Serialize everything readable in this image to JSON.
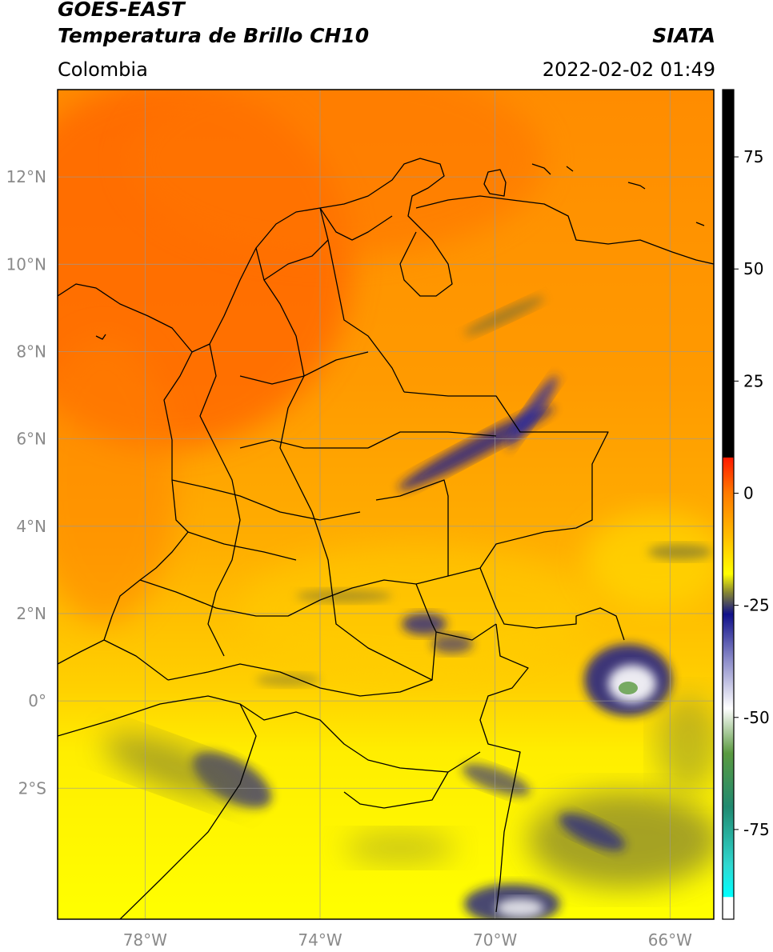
{
  "header": {
    "title_line1": "GOES-EAST",
    "title_line2": "Temperatura de Brillo CH10",
    "source": "SIATA",
    "region": "Colombia",
    "datetime": "2022-02-02 01:49"
  },
  "map": {
    "lon_range": [
      -80,
      -65
    ],
    "lat_range": [
      -5.0,
      14.0
    ],
    "lat_ticks": [
      {
        "value": 12,
        "label": "12°N"
      },
      {
        "value": 10,
        "label": "10°N"
      },
      {
        "value": 8,
        "label": "8°N"
      },
      {
        "value": 6,
        "label": "6°N"
      },
      {
        "value": 4,
        "label": "4°N"
      },
      {
        "value": 2,
        "label": "2°N"
      },
      {
        "value": 0,
        "label": "0°"
      },
      {
        "value": -2,
        "label": "2°S"
      }
    ],
    "lon_ticks": [
      {
        "value": -78,
        "label": "78°W"
      },
      {
        "value": -74,
        "label": "74°W"
      },
      {
        "value": -70,
        "label": "70°W"
      },
      {
        "value": -66,
        "label": "66°W"
      }
    ],
    "grid": true,
    "colors": {
      "warm": "#ff6a00",
      "mid": "#ffa500",
      "cool": "#ffff00",
      "cold": "#1a1a8c",
      "gridline": "#999999"
    }
  },
  "colorbar": {
    "range": [
      -95,
      90
    ],
    "ticks": [
      {
        "value": 75,
        "label": "75"
      },
      {
        "value": 50,
        "label": "50"
      },
      {
        "value": 25,
        "label": "25"
      },
      {
        "value": 0,
        "label": "0"
      },
      {
        "value": -25,
        "label": "-25"
      },
      {
        "value": -50,
        "label": "-50"
      },
      {
        "value": -75,
        "label": "-75"
      }
    ],
    "stops": [
      {
        "value": 90,
        "color": "#000000"
      },
      {
        "value": 8,
        "color": "#000000"
      },
      {
        "value": 7.9,
        "color": "#ff1a00"
      },
      {
        "value": 0,
        "color": "#ff7a00"
      },
      {
        "value": -10,
        "color": "#ffc000"
      },
      {
        "value": -18,
        "color": "#ffff00"
      },
      {
        "value": -22,
        "color": "#8a8a30"
      },
      {
        "value": -27,
        "color": "#10108a"
      },
      {
        "value": -37,
        "color": "#8a8ac8"
      },
      {
        "value": -48,
        "color": "#ffffff"
      },
      {
        "value": -58,
        "color": "#5a9a40"
      },
      {
        "value": -70,
        "color": "#208a70"
      },
      {
        "value": -83,
        "color": "#30d8d0"
      },
      {
        "value": -90,
        "color": "#00ffff"
      },
      {
        "value": -90.1,
        "color": "#ffffff"
      },
      {
        "value": -95,
        "color": "#ffffff"
      }
    ]
  }
}
